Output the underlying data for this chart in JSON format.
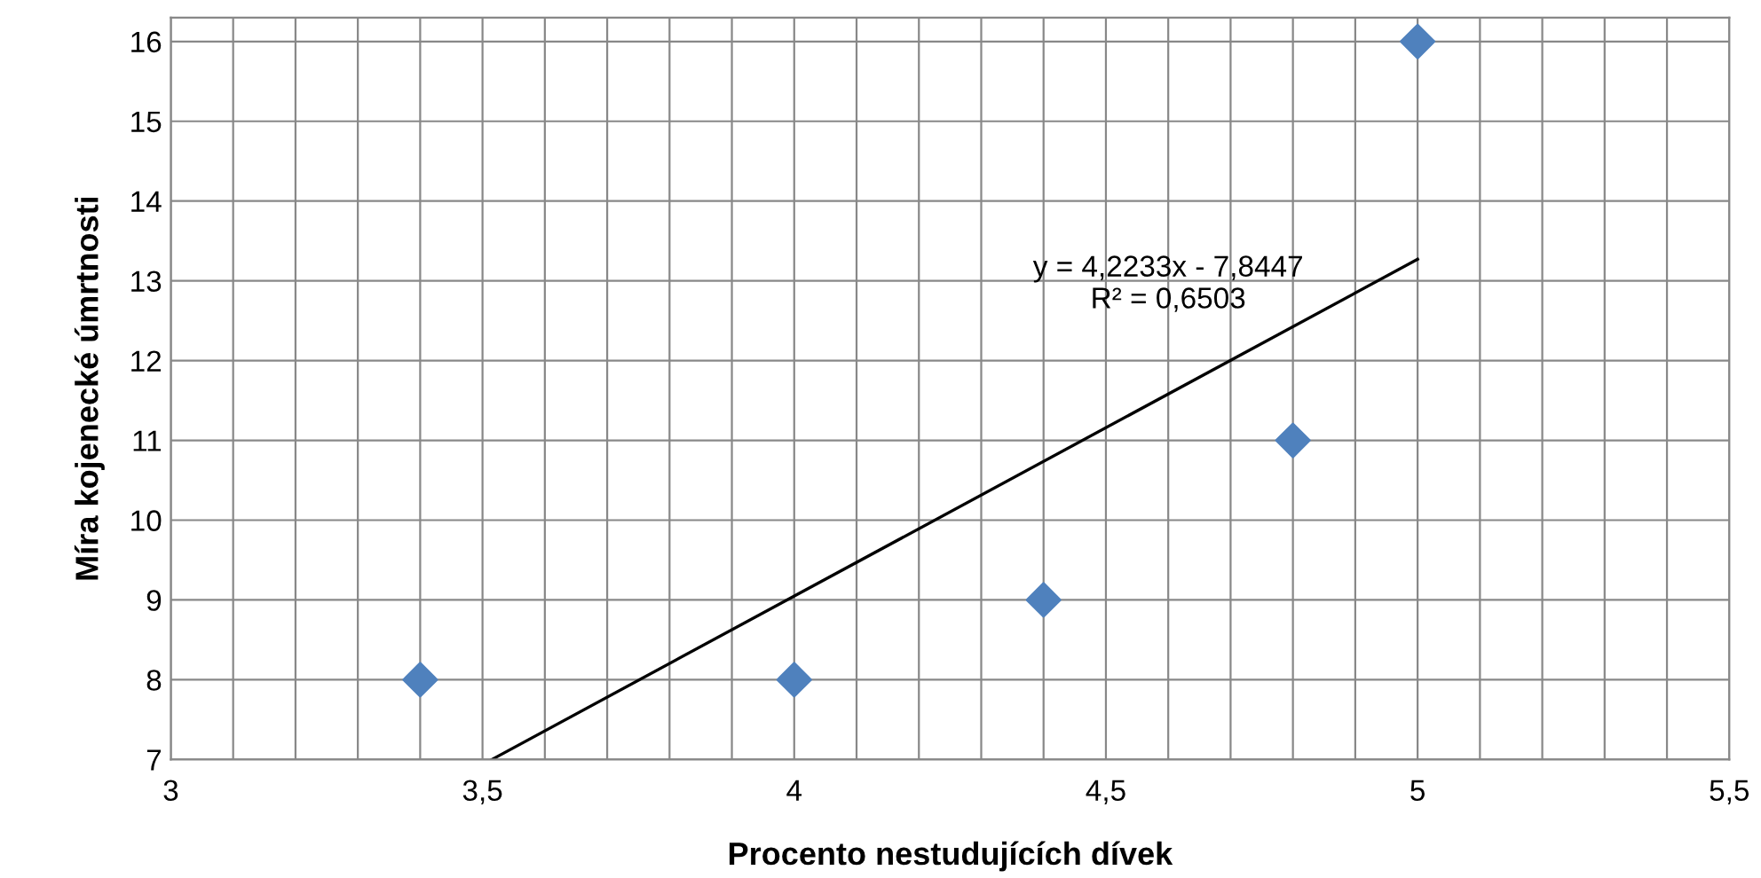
{
  "chart_data": {
    "type": "scatter",
    "xlabel": "Procento nestudujících dívek",
    "ylabel": "Míra kojenecké úmrtnosti",
    "series": [
      {
        "color": "#4f81bd",
        "marker": "diamond",
        "x": [
          3.4,
          4,
          4.4,
          4.8,
          5
        ],
        "values": [
          8,
          8,
          9,
          11,
          16
        ]
      },
      {
        "type": "line",
        "color": "#000000",
        "marker": "none",
        "line_style": "solid",
        "x": [
          3.515,
          5
        ],
        "values": [
          7.0,
          13.27
        ]
      }
    ],
    "annotations": [
      "y = 4,2233x - 7,8447\nR² = 0,6503"
    ],
    "xlim": [
      3,
      5.5
    ],
    "ylim": [
      7,
      16.3
    ],
    "xticks": [
      3,
      {
        "value": 3.1,
        "label": null
      },
      {
        "value": 3.2,
        "label": null
      },
      {
        "value": 3.3,
        "label": null
      },
      {
        "value": 3.4,
        "label": null
      },
      {
        "value": 3.5,
        "label": "3,5"
      },
      {
        "value": 3.6,
        "label": null
      },
      {
        "value": 3.7,
        "label": null
      },
      {
        "value": 3.8,
        "label": null
      },
      {
        "value": 3.9,
        "label": null
      },
      4,
      {
        "value": 4.1,
        "label": null
      },
      {
        "value": 4.2,
        "label": null
      },
      {
        "value": 4.3,
        "label": null
      },
      {
        "value": 4.4,
        "label": null
      },
      {
        "value": 4.5,
        "label": "4,5"
      },
      {
        "value": 4.6,
        "label": null
      },
      {
        "value": 4.7,
        "label": null
      },
      {
        "value": 4.8,
        "label": null
      },
      {
        "value": 4.9,
        "label": null
      },
      5,
      {
        "value": 5.1,
        "label": null
      },
      {
        "value": 5.2,
        "label": null
      },
      {
        "value": 5.3,
        "label": null
      },
      {
        "value": 5.4,
        "label": null
      },
      {
        "value": 5.5,
        "label": "5,5"
      }
    ],
    "yticks": [
      7,
      8,
      9,
      10,
      11,
      12,
      13,
      14,
      15,
      16
    ],
    "grid": true,
    "legend": false
  }
}
